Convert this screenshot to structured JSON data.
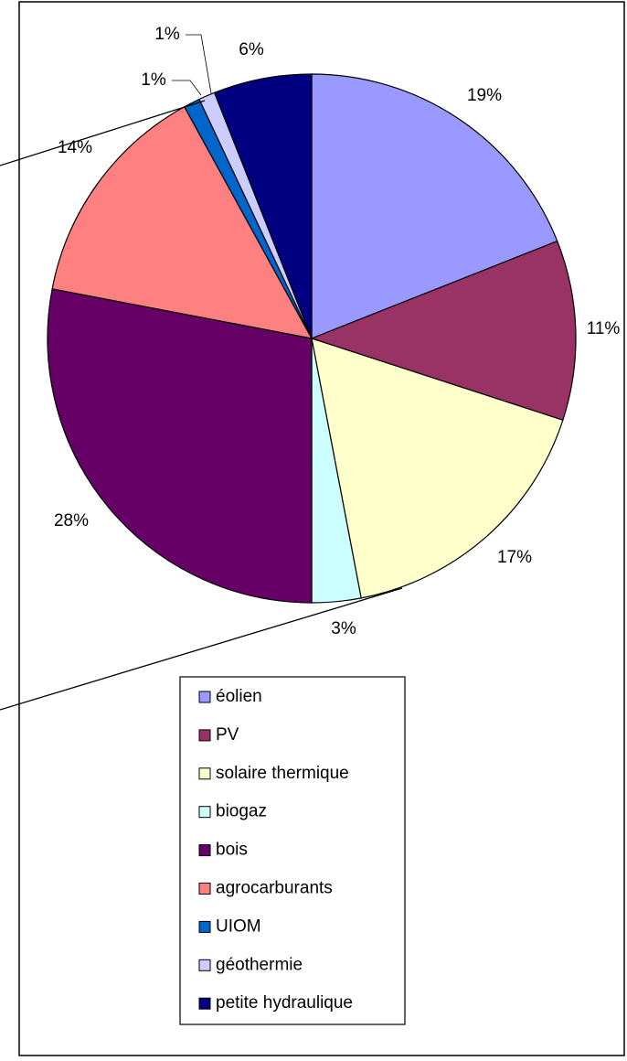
{
  "chart_data": {
    "type": "pie",
    "categories": [
      "éolien",
      "PV",
      "solaire thermique",
      "biogaz",
      "bois",
      "agrocarburants",
      "UIOM",
      "géothermie",
      "petite hydraulique"
    ],
    "values": [
      19,
      11,
      17,
      3,
      28,
      14,
      1,
      1,
      6
    ],
    "value_labels": [
      "19%",
      "11%",
      "17%",
      "3%",
      "28%",
      "14%",
      "1%",
      "1%",
      "6%"
    ],
    "colors": [
      "#9999ff",
      "#993366",
      "#ffffcc",
      "#ccffff",
      "#660066",
      "#ff8080",
      "#0066cc",
      "#ccccff",
      "#000080"
    ],
    "legend": "bottom"
  }
}
